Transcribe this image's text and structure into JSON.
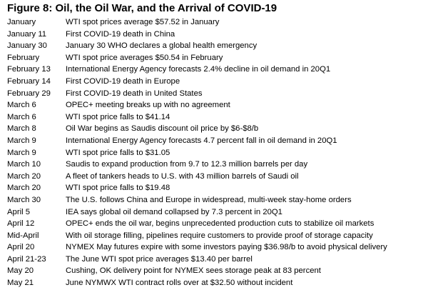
{
  "title": "Figure 8: Oil, the Oil War, and the Arrival of COVID-19",
  "rows": [
    {
      "date": "January",
      "event": "WTI spot prices average $57.52 in January"
    },
    {
      "date": "January 11",
      "event": "First COVID-19 death in China"
    },
    {
      "date": "January 30",
      "event": "January 30 WHO declares a global health emergency"
    },
    {
      "date": "February",
      "event": "WTI spot price averages $50.54 in February"
    },
    {
      "date": "February 13",
      "event": "International Energy Agency forecasts 2.4% decline in oil demand in 20Q1"
    },
    {
      "date": "February 14",
      "event": "First COVID-19 death in Europe"
    },
    {
      "date": "February 29",
      "event": "First COVID-19 death in United States"
    },
    {
      "date": "March 6",
      "event": "OPEC+ meeting breaks up with no agreement"
    },
    {
      "date": "March 6",
      "event": "WTI spot price falls to $41.14"
    },
    {
      "date": "March 8",
      "event": "Oil War begins as Saudis discount oil price by $6-$8/b"
    },
    {
      "date": "March 9",
      "event": "International Energy Agency forecasts 4.7 percent fall in oil demand in 20Q1"
    },
    {
      "date": "March 9",
      "event": "WTI spot price falls to $31.05"
    },
    {
      "date": "March 10",
      "event": "Saudis to expand production from 9.7 to 12.3 million barrels per day"
    },
    {
      "date": "March 20",
      "event": "A fleet of tankers heads to U.S. with 43 million barrels of Saudi oil"
    },
    {
      "date": "March 20",
      "event": "WTI spot price falls to $19.48"
    },
    {
      "date": "March 30",
      "event": "The U.S. follows China and Europe in widespread, multi-week stay-home orders"
    },
    {
      "date": "April 5",
      "event": "IEA says global oil demand collapsed by 7.3 percent in 20Q1"
    },
    {
      "date": "April 12",
      "event": "OPEC+ ends the oil war, begins unprecedented production cuts to stabilize oil markets"
    },
    {
      "date": "Mid-April",
      "event": "With oil storage filling, pipelines require customers to provide proof of storage capacity"
    },
    {
      "date": "April 20",
      "event": "NYMEX May futures expire with some investors paying $36.98/b to avoid physical delivery"
    },
    {
      "date": "April 21-23",
      "event": "The June WTI spot price averages $13.40 per barrel"
    },
    {
      "date": "May 20",
      "event": "Cushing, OK delivery point for NYMEX sees storage peak at 83 percent"
    },
    {
      "date": "May 21",
      "event": "June NYMWX WTI contract rolls over at $32.50 without incident"
    }
  ]
}
